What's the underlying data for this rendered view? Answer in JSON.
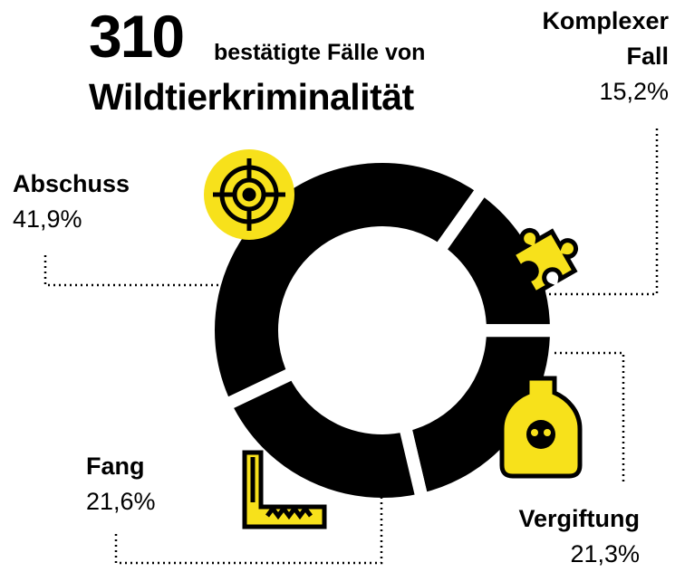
{
  "chart_data": {
    "type": "donut",
    "total": 310,
    "subtitle": "bestätigte Fälle von",
    "title": "Wildtierkriminalität",
    "categories": [
      "Abschuss",
      "Komplexer Fall",
      "Vergiftung",
      "Fang"
    ],
    "values": [
      41.9,
      15.2,
      21.3,
      21.6
    ],
    "value_labels": [
      "41,9%",
      "15,2%",
      "21,3%",
      "21,6%"
    ],
    "color": "#000000",
    "icon_color": "#f7e11b"
  }
}
